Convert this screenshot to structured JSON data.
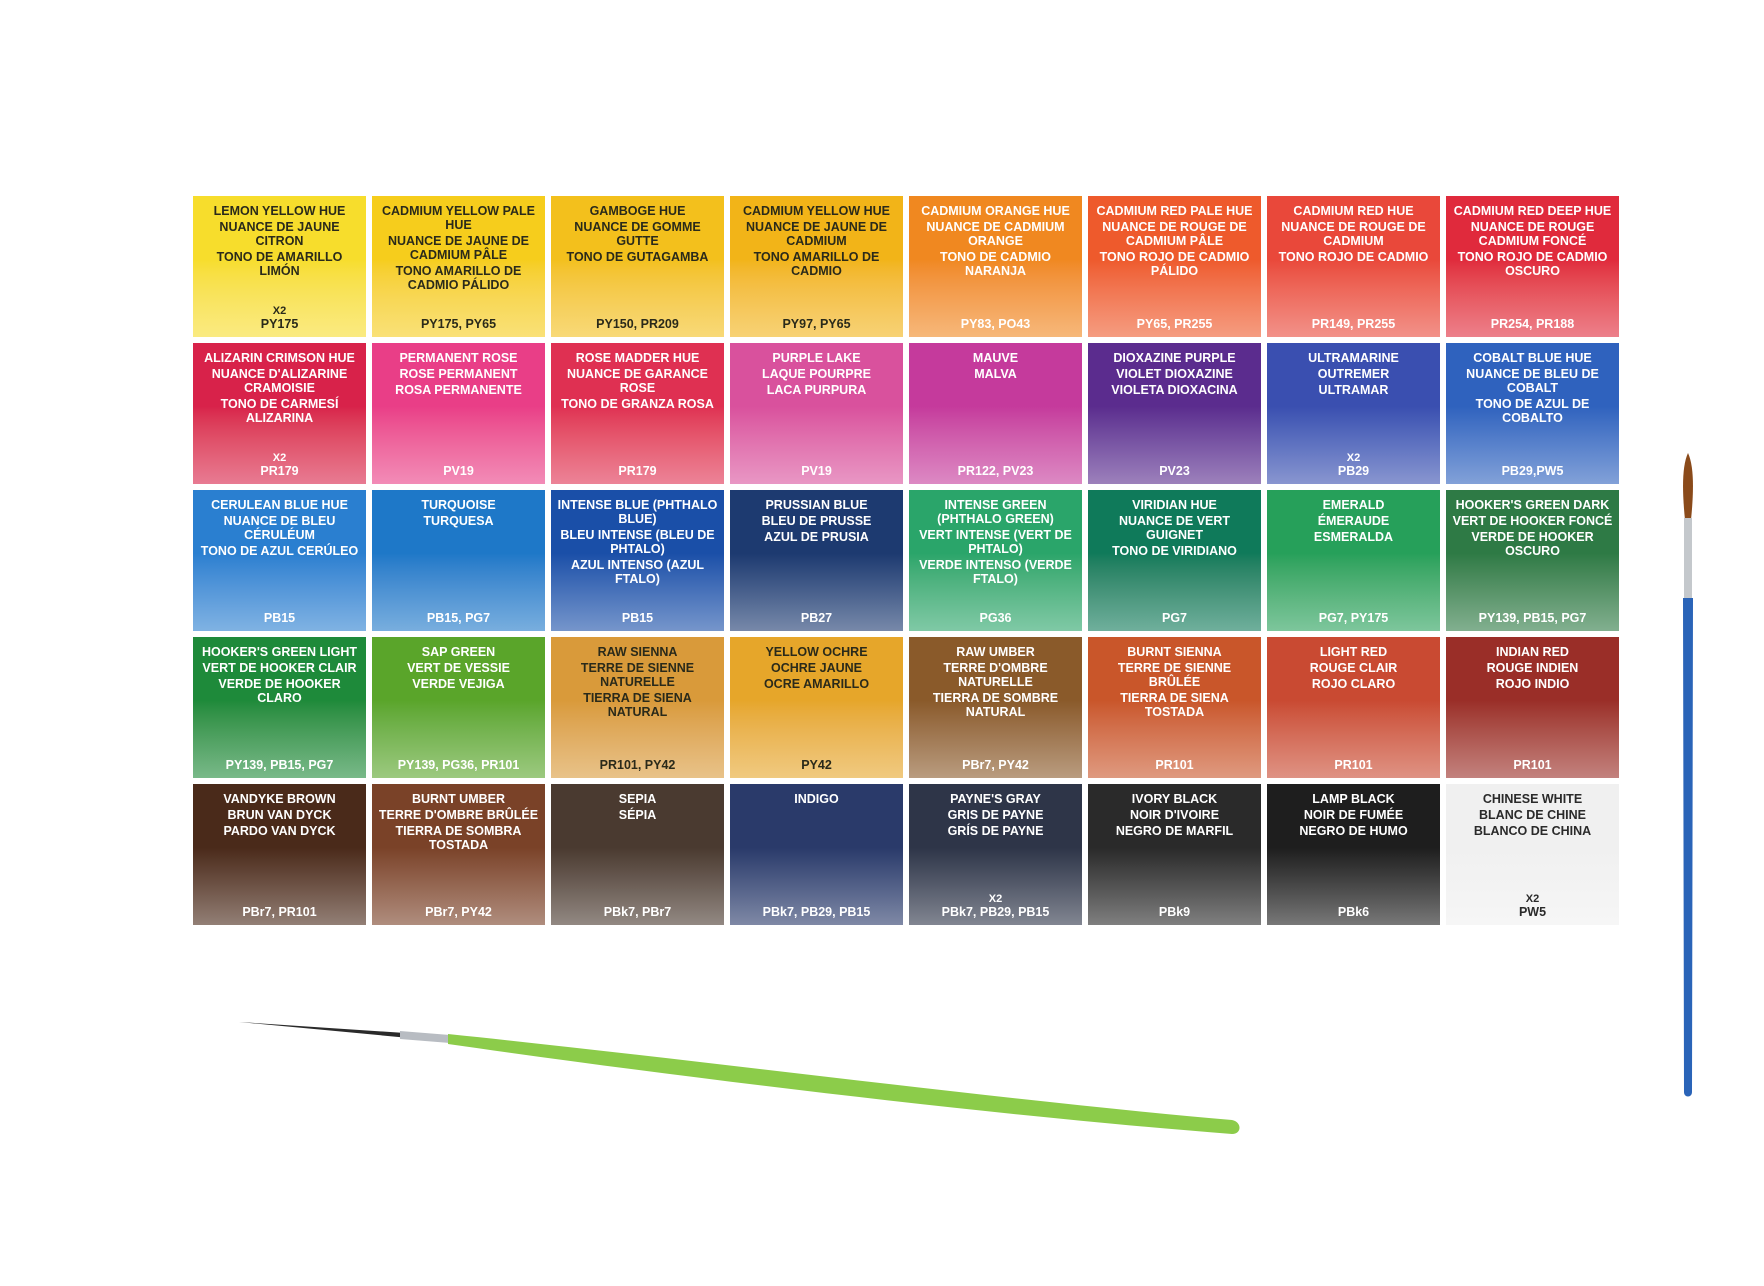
{
  "swatches": [
    {
      "lines": [
        "LEMON YELLOW HUE",
        "NUANCE DE JAUNE CITRON",
        "TONO DE AMARILLO LIMÓN"
      ],
      "count": "x2",
      "pigments": "PY175",
      "color": "#f7dd2c",
      "text_color": "#2a2a1a"
    },
    {
      "lines": [
        "CADMIUM YELLOW PALE HUE",
        "NUANCE DE JAUNE DE CADMIUM PÂLE",
        "TONO AMARILLO DE CADMIO PÁLIDO"
      ],
      "pigments": "PY175, PY65",
      "color": "#f6cd1c",
      "text_color": "#2a2a1a"
    },
    {
      "lines": [
        "GAMBOGE HUE",
        "NUANCE DE GOMME GUTTE",
        "TONO DE GUTAGAMBA"
      ],
      "pigments": "PY150, PR209",
      "color": "#f3c01c",
      "text_color": "#2a2a1a"
    },
    {
      "lines": [
        "CADMIUM YELLOW HUE",
        "NUANCE DE JAUNE DE CADMIUM",
        "TONO AMARILLO DE CADMIO"
      ],
      "pigments": "PY97, PY65",
      "color": "#f2b418",
      "text_color": "#2a2a1a"
    },
    {
      "lines": [
        "CADMIUM ORANGE HUE",
        "NUANCE DE CADMIUM ORANGE",
        "TONO DE CADMIO NARANJA"
      ],
      "pigments": "PY83, PO43",
      "color": "#f08820",
      "text_color": "#ffffff"
    },
    {
      "lines": [
        "CADMIUM RED PALE HUE",
        "NUANCE DE ROUGE DE CADMIUM PÂLE",
        "TONO ROJO DE CADMIO PÁLIDO"
      ],
      "pigments": "PY65, PR255",
      "color": "#ee5a2c",
      "text_color": "#ffffff"
    },
    {
      "lines": [
        "CADMIUM RED HUE",
        "NUANCE DE ROUGE DE CADMIUM",
        "TONO ROJO DE CADMIO"
      ],
      "pigments": "PR149, PR255",
      "color": "#e9483a",
      "text_color": "#ffffff"
    },
    {
      "lines": [
        "CADMIUM RED DEEP HUE",
        "NUANCE DE ROUGE CADMIUM FONCÉ",
        "TONO ROJO DE CADMIO OSCURO"
      ],
      "pigments": "PR254, PR188",
      "color": "#e02a3c",
      "text_color": "#ffffff"
    },
    {
      "lines": [
        "ALIZARIN CRIMSON HUE",
        "NUANCE D'ALIZARINE CRAMOISIE",
        "TONO DE CARMESÍ ALIZARINA"
      ],
      "count": "x2",
      "pigments": "PR179",
      "color": "#d8224a",
      "text_color": "#ffffff"
    },
    {
      "lines": [
        "PERMANENT ROSE",
        "ROSE PERMANENT",
        "ROSA PERMANENTE"
      ],
      "pigments": "PV19",
      "color": "#e93e87",
      "text_color": "#ffffff"
    },
    {
      "lines": [
        "ROSE MADDER HUE",
        "NUANCE DE GARANCE ROSE",
        "TONO DE GRANZA ROSA"
      ],
      "pigments": "PR179",
      "color": "#df3052",
      "text_color": "#ffffff"
    },
    {
      "lines": [
        "PURPLE LAKE",
        "LAQUE POURPRE",
        "LACA PURPURA"
      ],
      "pigments": "PV19",
      "color": "#d9519d",
      "text_color": "#ffffff"
    },
    {
      "lines": [
        "MAUVE",
        "MALVA"
      ],
      "pigments": "PR122, PV23",
      "color": "#c53a9c",
      "text_color": "#ffffff"
    },
    {
      "lines": [
        "DIOXAZINE PURPLE",
        "VIOLET DIOXAZINE",
        "VIOLETA DIOXACINA"
      ],
      "pigments": "PV23",
      "color": "#5b2c8e",
      "text_color": "#ffffff"
    },
    {
      "lines": [
        "ULTRAMARINE",
        "OUTREMER",
        "ULTRAMAR"
      ],
      "count": "x2",
      "pigments": "PB29",
      "color": "#3a4fb0",
      "text_color": "#ffffff"
    },
    {
      "lines": [
        "COBALT BLUE HUE",
        "NUANCE DE BLEU DE COBALT",
        "TONO DE AZUL DE COBALTO"
      ],
      "pigments": "PB29,PW5",
      "color": "#2f62be",
      "text_color": "#ffffff"
    },
    {
      "lines": [
        "CERULEAN BLUE HUE",
        "NUANCE DE BLEU CÉRULÉUM",
        "TONO DE AZUL CERÚLEO"
      ],
      "pigments": "PB15",
      "color": "#2a7fd0",
      "text_color": "#ffffff"
    },
    {
      "lines": [
        "TURQUOISE",
        "TURQUESA"
      ],
      "pigments": "PB15, PG7",
      "color": "#1e78c8",
      "text_color": "#ffffff"
    },
    {
      "lines": [
        "INTENSE BLUE (PHTHALO BLUE)",
        "BLEU INTENSE (BLEU DE PHTALO)",
        "AZUL INTENSO (AZUL FTALO)"
      ],
      "pigments": "PB15",
      "color": "#1a4fa8",
      "text_color": "#ffffff"
    },
    {
      "lines": [
        "PRUSSIAN BLUE",
        "BLEU DE PRUSSE",
        "AZUL DE PRUSIA"
      ],
      "pigments": "PB27",
      "color": "#1d3a70",
      "text_color": "#ffffff"
    },
    {
      "lines": [
        "INTENSE GREEN (PHTHALO GREEN)",
        "VERT INTENSE (VERT DE PHTALO)",
        "VERDE INTENSO (VERDE FTALO)"
      ],
      "pigments": "PG36",
      "color": "#2aa56a",
      "text_color": "#ffffff"
    },
    {
      "lines": [
        "VIRIDIAN HUE",
        "NUANCE DE VERT GUIGNET",
        "TONO DE VIRIDIANO"
      ],
      "pigments": "PG7",
      "color": "#0f7a5a",
      "text_color": "#ffffff"
    },
    {
      "lines": [
        "EMERALD",
        "ÉMERAUDE",
        "ESMERALDA"
      ],
      "pigments": "PG7, PY175",
      "color": "#26a05a",
      "text_color": "#ffffff"
    },
    {
      "lines": [
        "HOOKER'S GREEN DARK",
        "VERT DE HOOKER FONCÉ",
        "VERDE DE HOOKER OSCURO"
      ],
      "pigments": "PY139, PB15, PG7",
      "color": "#2e7a45",
      "text_color": "#ffffff"
    },
    {
      "lines": [
        "HOOKER'S GREEN LIGHT",
        "VERT DE HOOKER CLAIR",
        "VERDE DE HOOKER CLARO"
      ],
      "pigments": "PY139, PB15, PG7",
      "color": "#1e8a3a",
      "text_color": "#ffffff"
    },
    {
      "lines": [
        "SAP GREEN",
        "VERT DE VESSIE",
        "VERDE VEJIGA"
      ],
      "pigments": "PY139, PG36, PR101",
      "color": "#5aa52a",
      "text_color": "#ffffff"
    },
    {
      "lines": [
        "RAW SIENNA",
        "TERRE DE SIENNE NATURELLE",
        "TIERRA DE SIENA NATURAL"
      ],
      "pigments": "PR101, PY42",
      "color": "#d99a3a",
      "text_color": "#2a2a1a"
    },
    {
      "lines": [
        "YELLOW OCHRE",
        "OCHRE JAUNE",
        "OCRE AMARILLO"
      ],
      "pigments": "PY42",
      "color": "#e6a62a",
      "text_color": "#2a2a1a"
    },
    {
      "lines": [
        "RAW UMBER",
        "TERRE D'OMBRE NATURELLE",
        "TIERRA DE SOMBRE NATURAL"
      ],
      "pigments": "PBr7, PY42",
      "color": "#8a5a2a",
      "text_color": "#ffffff"
    },
    {
      "lines": [
        "BURNT SIENNA",
        "TERRE DE SIENNE BRÛLÉE",
        "TIERRA DE SIENA TOSTADA"
      ],
      "pigments": "PR101",
      "color": "#c9562a",
      "text_color": "#ffffff"
    },
    {
      "lines": [
        "LIGHT RED",
        "ROUGE CLAIR",
        "ROJO CLARO"
      ],
      "pigments": "PR101",
      "color": "#c94a32",
      "text_color": "#ffffff"
    },
    {
      "lines": [
        "INDIAN RED",
        "ROUGE INDIEN",
        "ROJO INDIO"
      ],
      "pigments": "PR101",
      "color": "#9a2e28",
      "text_color": "#ffffff"
    },
    {
      "lines": [
        "VANDYKE BROWN",
        "BRUN VAN DYCK",
        "PARDO VAN DYCK"
      ],
      "pigments": "PBr7, PR101",
      "color": "#4a2a1a",
      "text_color": "#ffffff"
    },
    {
      "lines": [
        "BURNT UMBER",
        "TERRE D'OMBRE BRÛLÉE",
        "TIERRA DE SOMBRA TOSTADA"
      ],
      "pigments": "PBr7, PY42",
      "color": "#7a4228",
      "text_color": "#ffffff"
    },
    {
      "lines": [
        "SEPIA",
        "SÉPIA"
      ],
      "pigments": "PBk7, PBr7",
      "color": "#4a3a30",
      "text_color": "#ffffff"
    },
    {
      "lines": [
        "INDIGO"
      ],
      "pigments": "PBk7, PB29, PB15",
      "color": "#2a3a6a",
      "text_color": "#ffffff"
    },
    {
      "lines": [
        "PAYNE'S GRAY",
        "GRIS DE PAYNE",
        "GRÍS DE PAYNE"
      ],
      "count": "x2",
      "pigments": "PBk7, PB29, PB15",
      "color": "#2e3548",
      "text_color": "#ffffff"
    },
    {
      "lines": [
        "IVORY BLACK",
        "NOIR D'IVOIRE",
        "NEGRO DE MARFIL"
      ],
      "pigments": "PBk9",
      "color": "#2a2a2a",
      "text_color": "#ffffff"
    },
    {
      "lines": [
        "LAMP BLACK",
        "NOIR DE FUMÉE",
        "NEGRO DE HUMO"
      ],
      "pigments": "PBk6",
      "color": "#1e1e1e",
      "text_color": "#ffffff"
    },
    {
      "lines": [
        "CHINESE WHITE",
        "BLANC DE CHINE",
        "BLANCO DE CHINA"
      ],
      "count": "x2",
      "pigments": "PW5",
      "color": "#f0f0f0",
      "text_color": "#2a2a2a"
    }
  ]
}
